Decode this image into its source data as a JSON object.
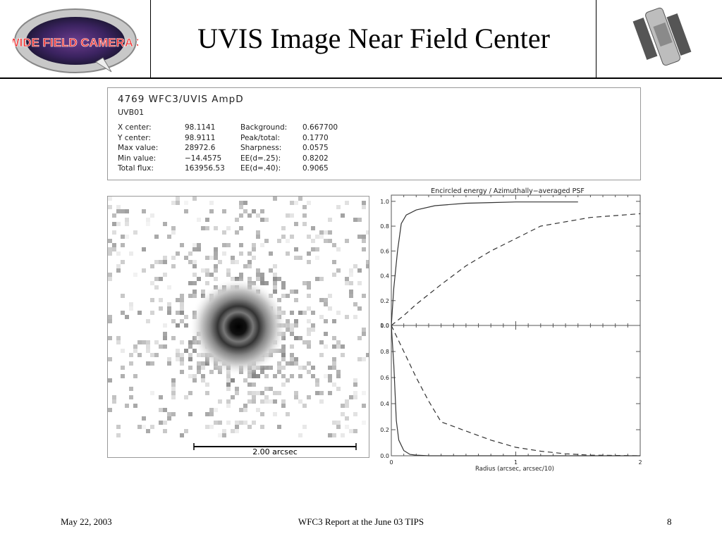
{
  "slide": {
    "title": "UVIS Image Near Field Center",
    "footer_date": "May 22, 2003",
    "footer_center": "WFC3 Report at the June 03 TIPS",
    "page_number": "8",
    "logo_text": "WIDE FIELD CAMERA 3"
  },
  "info": {
    "title": "4769   WFC3/UVIS   AmpD",
    "subtitle": "UVB01",
    "left": [
      {
        "label": "X center:",
        "value": "98.1141"
      },
      {
        "label": "Y center:",
        "value": "98.9111"
      },
      {
        "label": "Max value:",
        "value": "28972.6"
      },
      {
        "label": "Min value:",
        "value": "−14.4575"
      },
      {
        "label": "Total flux:",
        "value": "163956.53"
      }
    ],
    "right": [
      {
        "label": "Background:",
        "value": "0.667700"
      },
      {
        "label": "Peak/total:",
        "value": "0.1770"
      },
      {
        "label": "Sharpness:",
        "value": "0.0575"
      },
      {
        "label": "EE(d=.25):",
        "value": "0.8202"
      },
      {
        "label": "EE(d=.40):",
        "value": "0.9065"
      }
    ]
  },
  "image_panel": {
    "scale_label": "2.00 arcsec"
  },
  "chart_data": [
    {
      "type": "line",
      "title": "Encircled energy / Azimuthally−averaged PSF",
      "xlabel": "",
      "ylabel": "",
      "xlim": [
        0,
        2
      ],
      "ylim": [
        0,
        1.05
      ],
      "yticks": [
        "0.0",
        "0.2",
        "0.4",
        "0.6",
        "0.8",
        "1.0"
      ],
      "series": [
        {
          "style": "solid",
          "x": [
            0,
            0.02,
            0.05,
            0.08,
            0.12,
            0.2,
            0.35,
            0.6,
            0.8,
            1.0,
            1.5
          ],
          "y": [
            0,
            0.3,
            0.6,
            0.82,
            0.89,
            0.93,
            0.965,
            0.985,
            0.99,
            0.995,
            0.995
          ]
        },
        {
          "style": "dashed",
          "x": [
            0,
            0.1,
            0.2,
            0.4,
            0.6,
            0.8,
            1.0,
            1.2,
            1.6,
            2.0
          ],
          "y": [
            0,
            0.08,
            0.17,
            0.33,
            0.48,
            0.6,
            0.7,
            0.8,
            0.87,
            0.9
          ]
        }
      ]
    },
    {
      "type": "line",
      "title": "",
      "xlabel": "Radius (arcsec, arcsec/10)",
      "ylabel": "",
      "xlim": [
        0,
        2
      ],
      "ylim": [
        0,
        1.0
      ],
      "xticks": [
        "0",
        "1",
        "2"
      ],
      "yticks": [
        "0.0",
        "0.2",
        "0.4",
        "0.6",
        "0.8",
        "1.0"
      ],
      "series": [
        {
          "style": "solid",
          "x": [
            0,
            0.02,
            0.04,
            0.06,
            0.1,
            0.15,
            0.2,
            0.3,
            2.0
          ],
          "y": [
            1.0,
            0.7,
            0.27,
            0.12,
            0.04,
            0.01,
            0.005,
            0.0,
            0.0
          ]
        },
        {
          "style": "dashed",
          "x": [
            0,
            0.1,
            0.2,
            0.3,
            0.4,
            0.6,
            0.8,
            1.0,
            1.2,
            1.4,
            1.6,
            2.0
          ],
          "y": [
            1.0,
            0.8,
            0.6,
            0.42,
            0.26,
            0.19,
            0.12,
            0.065,
            0.035,
            0.015,
            0.005,
            0.0
          ]
        }
      ]
    }
  ]
}
